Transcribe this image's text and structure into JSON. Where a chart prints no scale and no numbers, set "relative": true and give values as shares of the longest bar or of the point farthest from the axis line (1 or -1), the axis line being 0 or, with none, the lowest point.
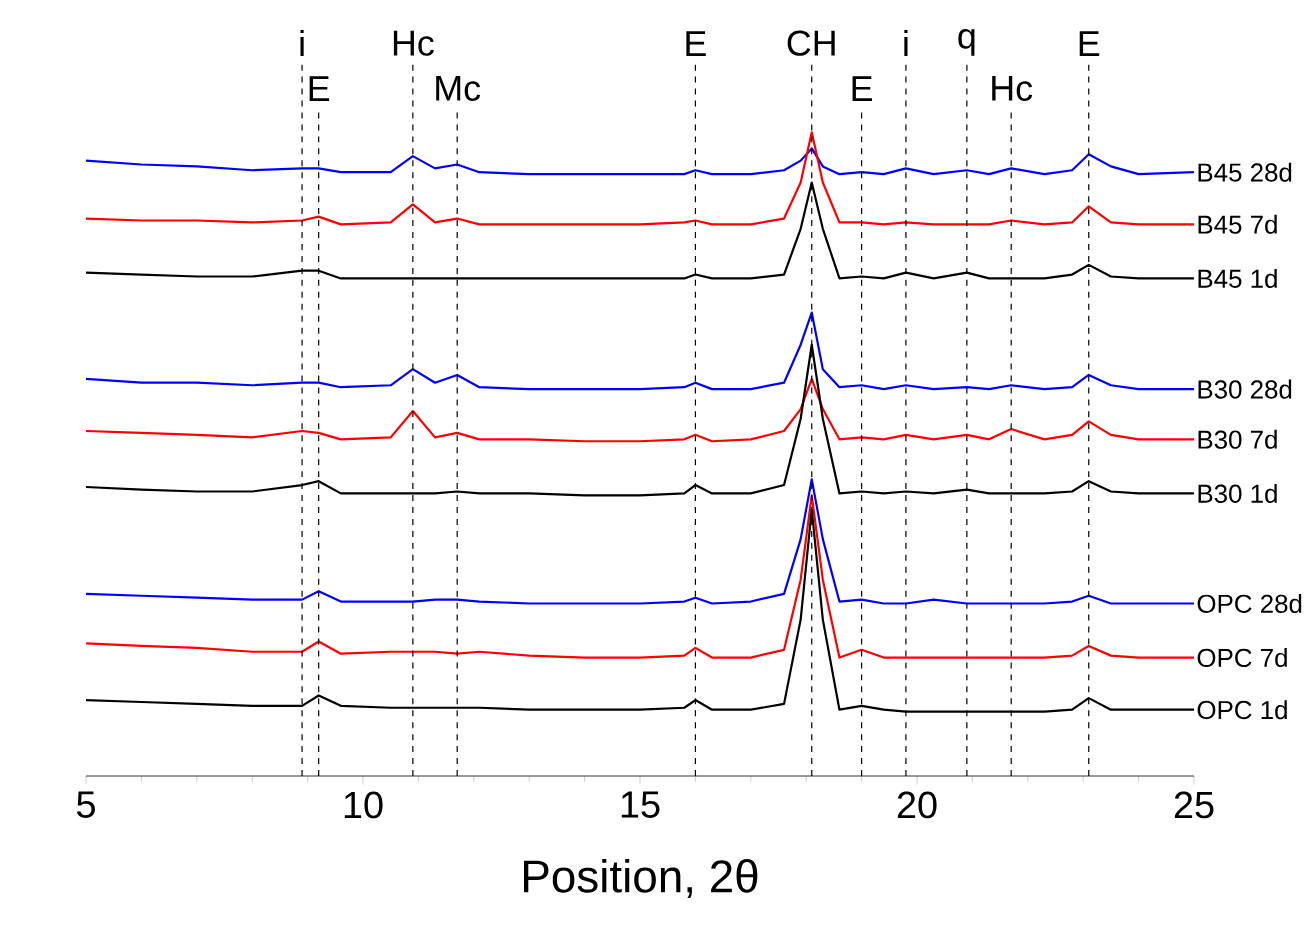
{
  "chart_data": {
    "type": "line",
    "relative": true,
    "xlabel": "Position, 2θ",
    "xlim": [
      5,
      25
    ],
    "xticks": [
      5,
      10,
      15,
      20,
      25
    ],
    "x": [
      5,
      6,
      7,
      8,
      8.9,
      9.2,
      9.6,
      10.5,
      10.9,
      11.3,
      11.7,
      12.1,
      13,
      14,
      15,
      15.8,
      16,
      16.3,
      17,
      17.6,
      17.9,
      18.1,
      18.3,
      18.6,
      19,
      19.4,
      19.8,
      20.3,
      20.9,
      21.3,
      21.7,
      22.3,
      22.8,
      23.1,
      23.5,
      24,
      25
    ],
    "series": [
      {
        "name": "B45 28d",
        "color": "#0000ff",
        "values": [
          0.956,
          0.95,
          0.947,
          0.941,
          0.944,
          0.944,
          0.938,
          0.938,
          0.963,
          0.944,
          0.95,
          0.938,
          0.935,
          0.935,
          0.935,
          0.935,
          0.941,
          0.935,
          0.935,
          0.941,
          0.956,
          0.975,
          0.947,
          0.935,
          0.938,
          0.935,
          0.944,
          0.935,
          0.941,
          0.935,
          0.944,
          0.935,
          0.941,
          0.966,
          0.947,
          0.935,
          0.938
        ]
      },
      {
        "name": "B45 7d",
        "color": "#ff0000",
        "values": [
          0.866,
          0.863,
          0.863,
          0.86,
          0.863,
          0.869,
          0.857,
          0.86,
          0.888,
          0.86,
          0.866,
          0.857,
          0.857,
          0.857,
          0.857,
          0.86,
          0.863,
          0.857,
          0.857,
          0.866,
          0.922,
          1.0,
          0.922,
          0.86,
          0.86,
          0.857,
          0.86,
          0.857,
          0.857,
          0.857,
          0.863,
          0.857,
          0.86,
          0.885,
          0.86,
          0.857,
          0.857
        ]
      },
      {
        "name": "B45 1d",
        "color": "#000000",
        "values": [
          0.782,
          0.779,
          0.776,
          0.776,
          0.785,
          0.785,
          0.773,
          0.773,
          0.773,
          0.773,
          0.773,
          0.773,
          0.773,
          0.773,
          0.773,
          0.773,
          0.779,
          0.773,
          0.773,
          0.779,
          0.85,
          0.922,
          0.85,
          0.773,
          0.776,
          0.773,
          0.782,
          0.773,
          0.782,
          0.773,
          0.773,
          0.773,
          0.779,
          0.794,
          0.776,
          0.773,
          0.773
        ]
      },
      {
        "name": "B30 28d",
        "color": "#0000ff",
        "values": [
          0.617,
          0.611,
          0.611,
          0.607,
          0.611,
          0.611,
          0.604,
          0.607,
          0.632,
          0.611,
          0.623,
          0.604,
          0.601,
          0.601,
          0.601,
          0.604,
          0.611,
          0.601,
          0.601,
          0.611,
          0.67,
          0.72,
          0.632,
          0.604,
          0.607,
          0.601,
          0.607,
          0.601,
          0.604,
          0.601,
          0.607,
          0.601,
          0.604,
          0.623,
          0.607,
          0.601,
          0.601
        ]
      },
      {
        "name": "B30 7d",
        "color": "#ff0000",
        "values": [
          0.536,
          0.533,
          0.53,
          0.526,
          0.536,
          0.533,
          0.523,
          0.526,
          0.567,
          0.526,
          0.533,
          0.523,
          0.523,
          0.52,
          0.52,
          0.523,
          0.53,
          0.52,
          0.523,
          0.536,
          0.57,
          0.617,
          0.57,
          0.523,
          0.526,
          0.523,
          0.53,
          0.523,
          0.53,
          0.523,
          0.539,
          0.523,
          0.53,
          0.551,
          0.53,
          0.523,
          0.523
        ]
      },
      {
        "name": "B30 1d",
        "color": "#000000",
        "values": [
          0.449,
          0.445,
          0.442,
          0.442,
          0.452,
          0.458,
          0.439,
          0.439,
          0.439,
          0.439,
          0.442,
          0.439,
          0.439,
          0.436,
          0.436,
          0.439,
          0.452,
          0.439,
          0.439,
          0.452,
          0.555,
          0.67,
          0.555,
          0.439,
          0.442,
          0.439,
          0.442,
          0.439,
          0.445,
          0.439,
          0.439,
          0.439,
          0.442,
          0.458,
          0.442,
          0.439,
          0.439
        ]
      },
      {
        "name": "OPC 28d",
        "color": "#0000ff",
        "values": [
          0.283,
          0.28,
          0.277,
          0.274,
          0.274,
          0.287,
          0.271,
          0.271,
          0.271,
          0.274,
          0.274,
          0.271,
          0.268,
          0.268,
          0.268,
          0.271,
          0.277,
          0.268,
          0.271,
          0.283,
          0.368,
          0.461,
          0.368,
          0.271,
          0.274,
          0.268,
          0.268,
          0.274,
          0.268,
          0.268,
          0.268,
          0.268,
          0.271,
          0.28,
          0.268,
          0.268,
          0.268
        ]
      },
      {
        "name": "OPC 7d",
        "color": "#ff0000",
        "values": [
          0.206,
          0.202,
          0.199,
          0.193,
          0.193,
          0.209,
          0.19,
          0.193,
          0.193,
          0.193,
          0.19,
          0.193,
          0.187,
          0.184,
          0.184,
          0.187,
          0.199,
          0.184,
          0.184,
          0.196,
          0.305,
          0.436,
          0.305,
          0.184,
          0.196,
          0.184,
          0.184,
          0.184,
          0.184,
          0.184,
          0.184,
          0.184,
          0.187,
          0.202,
          0.187,
          0.184,
          0.184
        ]
      },
      {
        "name": "OPC 1d",
        "color": "#000000",
        "values": [
          0.118,
          0.115,
          0.112,
          0.109,
          0.109,
          0.125,
          0.109,
          0.106,
          0.106,
          0.106,
          0.106,
          0.106,
          0.103,
          0.103,
          0.103,
          0.106,
          0.118,
          0.103,
          0.103,
          0.112,
          0.243,
          0.414,
          0.243,
          0.103,
          0.109,
          0.103,
          0.1,
          0.1,
          0.1,
          0.1,
          0.1,
          0.1,
          0.103,
          0.121,
          0.103,
          0.103,
          0.103
        ]
      }
    ],
    "ref_lines": [
      {
        "axis": "x",
        "value": 8.9,
        "label": "i",
        "color": "#000000",
        "line_style": "dashed"
      },
      {
        "axis": "x",
        "value": 9.2,
        "label": "E",
        "color": "#000000",
        "line_style": "dashed"
      },
      {
        "axis": "x",
        "value": 10.9,
        "label": "Hc",
        "color": "#000000",
        "line_style": "dashed"
      },
      {
        "axis": "x",
        "value": 11.7,
        "label": "Mc",
        "color": "#000000",
        "line_style": "dashed"
      },
      {
        "axis": "x",
        "value": 16.0,
        "label": "E",
        "color": "#000000",
        "line_style": "dashed"
      },
      {
        "axis": "x",
        "value": 18.1,
        "label": "CH",
        "color": "#000000",
        "line_style": "dashed"
      },
      {
        "axis": "x",
        "value": 19.0,
        "label": "E",
        "color": "#000000",
        "line_style": "dashed"
      },
      {
        "axis": "x",
        "value": 19.8,
        "label": "i",
        "color": "#000000",
        "line_style": "dashed"
      },
      {
        "axis": "x",
        "value": 20.9,
        "label": "q",
        "color": "#000000",
        "line_style": "dashed"
      },
      {
        "axis": "x",
        "value": 21.7,
        "label": "Hc",
        "color": "#000000",
        "line_style": "dashed"
      },
      {
        "axis": "x",
        "value": 23.1,
        "label": "E",
        "color": "#000000",
        "line_style": "dashed"
      }
    ]
  }
}
